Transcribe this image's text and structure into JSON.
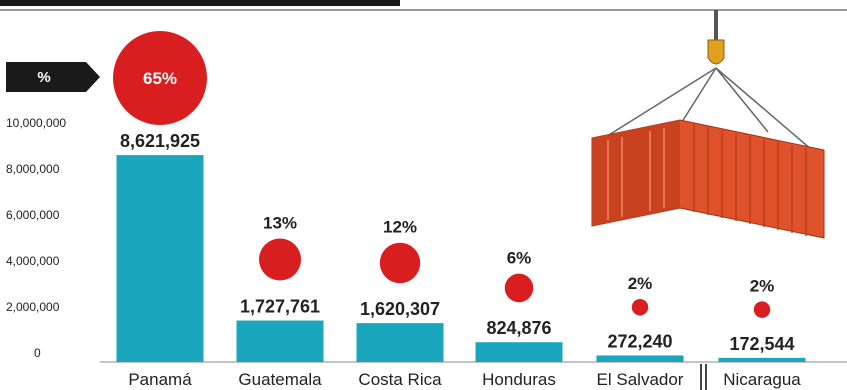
{
  "chart_data": {
    "type": "bar",
    "title": "",
    "xlabel": "",
    "ylabel": "",
    "ylim": [
      0,
      10000000
    ],
    "yticks": [
      "10,000,000",
      "8,000,000",
      "6,000,000",
      "4,000,000",
      "2,000,000",
      "0"
    ],
    "ytick_values": [
      10000000,
      8000000,
      6000000,
      4000000,
      2000000,
      0
    ],
    "percent_badge": "%",
    "categories": [
      "Panamá",
      "Guatemala",
      "Costa Rica",
      "Honduras",
      "El Salvador",
      "Nicaragua"
    ],
    "values": [
      8621925,
      1727761,
      1620307,
      824876,
      272240,
      172544
    ],
    "value_labels": [
      "8,621,925",
      "1,727,761",
      "1,620,307",
      "824,876",
      "272,240",
      "172,544"
    ],
    "share_percent": [
      65,
      13,
      12,
      6,
      2,
      2
    ],
    "share_labels": [
      "65%",
      "13%",
      "12%",
      "6%",
      "2%",
      "2%"
    ],
    "grid": false,
    "legend": "none"
  },
  "colors": {
    "bar": "#1aa7bd",
    "bubble": "#d81e1e",
    "badge": "#1a1a1a",
    "container": "#e0522b"
  },
  "icons": {
    "container": "shipping-container-icon"
  }
}
